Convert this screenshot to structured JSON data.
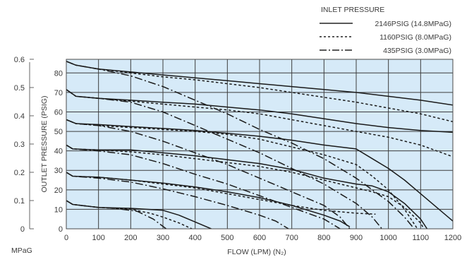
{
  "chart_data": {
    "type": "line",
    "title": "",
    "xlabel": "FLOW (LPM) (N₂)",
    "ylabel": "OUTLET PRESSURE (PSIG)",
    "ylabel_secondary_unit": "MPaG",
    "xlim": [
      0,
      1200
    ],
    "ylim": [
      0,
      87
    ],
    "ylim_secondary": [
      0,
      0.6
    ],
    "x_ticks": [
      0,
      100,
      200,
      300,
      400,
      500,
      600,
      700,
      800,
      900,
      1000,
      1100,
      1200
    ],
    "y_ticks": [
      0,
      10,
      20,
      30,
      40,
      50,
      60,
      70,
      80
    ],
    "y_ticks_secondary": [
      "0",
      "0.1",
      "0.2",
      "0.3",
      "0.4",
      "0.5",
      "0.6"
    ],
    "grid": true,
    "plot_background": "#d6eaf8",
    "legend": {
      "title": "INLET PRESSURE",
      "placement": "top-right",
      "entries": [
        {
          "label": "2146PSIG (14.8MPaG)",
          "style": "solid"
        },
        {
          "label": "1160PSIG (8.0MPaG)",
          "style": "dotted"
        },
        {
          "label": "435PSIG (3.0MPaG)",
          "style": "dash-dot"
        }
      ]
    },
    "series": [
      {
        "inlet": "2146PSIG (14.8MPaG)",
        "style": "solid",
        "points": [
          [
            0,
            86
          ],
          [
            30,
            84
          ],
          [
            100,
            82
          ],
          [
            200,
            80.5
          ],
          [
            300,
            79
          ],
          [
            400,
            77.5
          ],
          [
            500,
            76
          ],
          [
            600,
            74.5
          ],
          [
            700,
            73
          ],
          [
            800,
            71.5
          ],
          [
            900,
            70
          ],
          [
            1000,
            68
          ],
          [
            1100,
            66
          ],
          [
            1200,
            63.5
          ]
        ]
      },
      {
        "inlet": "1160PSIG (8.0MPaG)",
        "style": "dotted",
        "points": [
          [
            0,
            86
          ],
          [
            30,
            84
          ],
          [
            100,
            82
          ],
          [
            200,
            80
          ],
          [
            300,
            78
          ],
          [
            400,
            76.5
          ],
          [
            500,
            74.5
          ],
          [
            600,
            72.5
          ],
          [
            700,
            70
          ],
          [
            800,
            67.5
          ],
          [
            900,
            65
          ],
          [
            1000,
            62
          ],
          [
            1100,
            59
          ],
          [
            1200,
            55
          ]
        ]
      },
      {
        "inlet": "435PSIG (3.0MPaG)",
        "style": "dash-dot",
        "points": [
          [
            0,
            86
          ],
          [
            30,
            84
          ],
          [
            100,
            82
          ],
          [
            200,
            78.5
          ],
          [
            300,
            73
          ],
          [
            400,
            66
          ],
          [
            500,
            59
          ],
          [
            600,
            51
          ],
          [
            700,
            44
          ],
          [
            800,
            36
          ],
          [
            900,
            26
          ],
          [
            1000,
            14
          ],
          [
            1050,
            6
          ],
          [
            1080,
            0
          ]
        ]
      },
      {
        "inlet": "2146PSIG (14.8MPaG)",
        "style": "solid",
        "points": [
          [
            0,
            71.5
          ],
          [
            30,
            68
          ],
          [
            100,
            67
          ],
          [
            200,
            66
          ],
          [
            300,
            65
          ],
          [
            400,
            64
          ],
          [
            500,
            62.5
          ],
          [
            600,
            61
          ],
          [
            700,
            59
          ],
          [
            800,
            56.5
          ],
          [
            900,
            54
          ],
          [
            1000,
            52
          ],
          [
            1100,
            50.5
          ],
          [
            1200,
            49.5
          ]
        ]
      },
      {
        "inlet": "1160PSIG (8.0MPaG)",
        "style": "dotted",
        "points": [
          [
            0,
            71.5
          ],
          [
            30,
            68
          ],
          [
            100,
            67
          ],
          [
            200,
            65.5
          ],
          [
            300,
            64
          ],
          [
            400,
            62.5
          ],
          [
            500,
            61
          ],
          [
            600,
            59
          ],
          [
            700,
            56
          ],
          [
            800,
            53
          ],
          [
            900,
            50
          ],
          [
            1000,
            47
          ],
          [
            1100,
            43
          ],
          [
            1200,
            37
          ]
        ]
      },
      {
        "inlet": "435PSIG (3.0MPaG)",
        "style": "dash-dot",
        "points": [
          [
            0,
            71.5
          ],
          [
            30,
            68
          ],
          [
            100,
            67
          ],
          [
            200,
            65
          ],
          [
            300,
            60
          ],
          [
            400,
            53
          ],
          [
            500,
            46
          ],
          [
            600,
            39
          ],
          [
            700,
            31
          ],
          [
            800,
            23
          ],
          [
            900,
            13
          ],
          [
            950,
            6
          ],
          [
            980,
            0
          ]
        ]
      },
      {
        "inlet": "2146PSIG (14.8MPaG)",
        "style": "solid",
        "points": [
          [
            0,
            56
          ],
          [
            30,
            54
          ],
          [
            100,
            53.5
          ],
          [
            200,
            52.5
          ],
          [
            300,
            51.5
          ],
          [
            400,
            50.5
          ],
          [
            500,
            49
          ],
          [
            600,
            47.5
          ],
          [
            700,
            45.5
          ],
          [
            800,
            43
          ],
          [
            900,
            41
          ],
          [
            950,
            36
          ],
          [
            1000,
            31
          ],
          [
            1050,
            25
          ],
          [
            1100,
            18
          ],
          [
            1150,
            11
          ],
          [
            1200,
            4
          ]
        ]
      },
      {
        "inlet": "1160PSIG (8.0MPaG)",
        "style": "dotted",
        "points": [
          [
            0,
            56
          ],
          [
            30,
            54
          ],
          [
            100,
            53
          ],
          [
            200,
            52
          ],
          [
            300,
            51
          ],
          [
            400,
            50
          ],
          [
            500,
            48.5
          ],
          [
            600,
            46
          ],
          [
            700,
            42
          ],
          [
            800,
            38
          ],
          [
            900,
            33
          ],
          [
            950,
            27
          ],
          [
            1000,
            20
          ],
          [
            1050,
            10
          ],
          [
            1090,
            0
          ]
        ]
      },
      {
        "inlet": "435PSIG (3.0MPaG)",
        "style": "dash-dot",
        "points": [
          [
            0,
            56
          ],
          [
            30,
            54
          ],
          [
            100,
            53
          ],
          [
            200,
            50
          ],
          [
            300,
            45
          ],
          [
            400,
            39
          ],
          [
            500,
            33
          ],
          [
            600,
            26
          ],
          [
            700,
            19
          ],
          [
            800,
            12
          ],
          [
            850,
            6
          ],
          [
            880,
            0
          ]
        ]
      },
      {
        "inlet": "2146PSIG (14.8MPaG)",
        "style": "solid",
        "points": [
          [
            0,
            43
          ],
          [
            20,
            41
          ],
          [
            100,
            40.5
          ],
          [
            200,
            40.5
          ],
          [
            300,
            39
          ],
          [
            400,
            37.5
          ],
          [
            500,
            35.5
          ],
          [
            600,
            33.5
          ],
          [
            700,
            30.5
          ],
          [
            800,
            26
          ],
          [
            900,
            23
          ],
          [
            950,
            22
          ],
          [
            1000,
            19
          ],
          [
            1050,
            13
          ],
          [
            1100,
            5
          ],
          [
            1120,
            0
          ]
        ]
      },
      {
        "inlet": "1160PSIG (8.0MPaG)",
        "style": "dotted",
        "points": [
          [
            0,
            43
          ],
          [
            20,
            41
          ],
          [
            100,
            40.5
          ],
          [
            200,
            39.5
          ],
          [
            300,
            38
          ],
          [
            400,
            36
          ],
          [
            500,
            34
          ],
          [
            600,
            32
          ],
          [
            700,
            29
          ],
          [
            800,
            25
          ],
          [
            900,
            21
          ],
          [
            950,
            19
          ],
          [
            1000,
            16.5
          ],
          [
            1050,
            11
          ],
          [
            1100,
            3
          ],
          [
            1110,
            0
          ]
        ]
      },
      {
        "inlet": "435PSIG (3.0MPaG)",
        "style": "dash-dot",
        "points": [
          [
            0,
            43
          ],
          [
            20,
            41
          ],
          [
            100,
            40
          ],
          [
            200,
            38
          ],
          [
            300,
            33.5
          ],
          [
            400,
            28
          ],
          [
            500,
            23
          ],
          [
            600,
            17
          ],
          [
            700,
            11
          ],
          [
            800,
            5
          ],
          [
            850,
            0
          ]
        ]
      },
      {
        "inlet": "2146PSIG (14.8MPaG)",
        "style": "solid",
        "points": [
          [
            0,
            29
          ],
          [
            20,
            27
          ],
          [
            100,
            26.5
          ],
          [
            200,
            25
          ],
          [
            300,
            23.5
          ],
          [
            400,
            21.5
          ],
          [
            500,
            19
          ],
          [
            600,
            16
          ],
          [
            700,
            12
          ],
          [
            800,
            7
          ],
          [
            850,
            4
          ],
          [
            880,
            1
          ]
        ]
      },
      {
        "inlet": "1160PSIG (8.0MPaG)",
        "style": "dotted",
        "points": [
          [
            0,
            29
          ],
          [
            20,
            27
          ],
          [
            100,
            26.5
          ],
          [
            200,
            25
          ],
          [
            300,
            23
          ],
          [
            400,
            21
          ],
          [
            500,
            18
          ],
          [
            600,
            15
          ],
          [
            700,
            12
          ],
          [
            800,
            9.5
          ],
          [
            900,
            8
          ],
          [
            960,
            7.5
          ]
        ]
      },
      {
        "inlet": "435PSIG (3.0MPaG)",
        "style": "dash-dot",
        "points": [
          [
            0,
            29
          ],
          [
            20,
            27
          ],
          [
            100,
            26
          ],
          [
            200,
            24
          ],
          [
            300,
            20.5
          ],
          [
            400,
            16.5
          ],
          [
            500,
            12
          ],
          [
            600,
            7
          ],
          [
            650,
            4
          ],
          [
            690,
            0
          ]
        ]
      },
      {
        "inlet": "2146PSIG (14.8MPaG)",
        "style": "solid",
        "points": [
          [
            0,
            14.5
          ],
          [
            20,
            12.5
          ],
          [
            100,
            11
          ],
          [
            200,
            10.5
          ],
          [
            300,
            9.5
          ],
          [
            350,
            7
          ],
          [
            400,
            3.5
          ],
          [
            450,
            0
          ]
        ]
      },
      {
        "inlet": "1160PSIG (8.0MPaG)",
        "style": "dotted",
        "points": [
          [
            0,
            14.5
          ],
          [
            20,
            12.5
          ],
          [
            100,
            11
          ],
          [
            200,
            10
          ],
          [
            260,
            8
          ],
          [
            300,
            6
          ],
          [
            350,
            3
          ],
          [
            390,
            0
          ]
        ]
      },
      {
        "inlet": "435PSIG (3.0MPaG)",
        "style": "dash-dot",
        "points": [
          [
            0,
            14.5
          ],
          [
            20,
            12.5
          ],
          [
            100,
            11
          ],
          [
            150,
            10.5
          ],
          [
            220,
            9
          ],
          [
            270,
            5
          ],
          [
            310,
            0
          ]
        ]
      }
    ]
  }
}
